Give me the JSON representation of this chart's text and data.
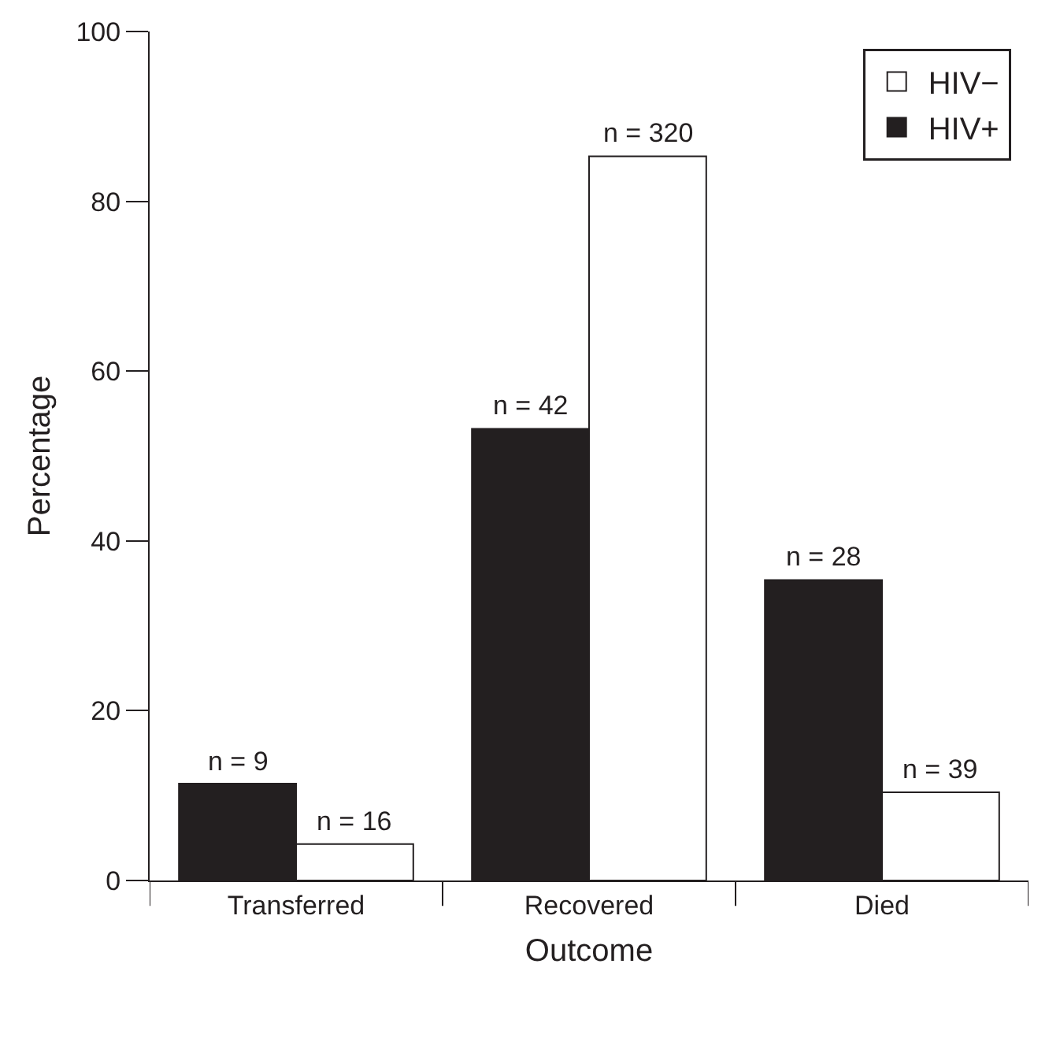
{
  "chart_data": {
    "type": "bar",
    "xlabel": "Outcome",
    "ylabel": "Percentage",
    "categories": [
      "Transferred",
      "Recovered",
      "Died"
    ],
    "series": [
      {
        "name": "HIV+",
        "color": "#231f20",
        "values": [
          11.4,
          53.2,
          35.4
        ]
      },
      {
        "name": "HIV−",
        "color": "#ffffff",
        "values": [
          4.3,
          85.3,
          10.4
        ]
      }
    ],
    "annotations": [
      {
        "text": "n = 9",
        "x": "Transferred",
        "y": 11.4
      },
      {
        "text": "n = 42",
        "x": "Recovered",
        "y": 53.2
      },
      {
        "text": "n = 28",
        "x": "Died",
        "y": 35.4
      },
      {
        "text": "n = 16",
        "x": "Transferred",
        "y": 4.3
      },
      {
        "text": "n = 320",
        "x": "Recovered",
        "y": 85.3
      },
      {
        "text": "n = 39",
        "x": "Died",
        "y": 10.4
      }
    ],
    "ylim": [
      0,
      100
    ],
    "yticks": [
      0,
      20,
      40,
      60,
      80,
      100
    ],
    "grid": false,
    "legend": "top right"
  }
}
